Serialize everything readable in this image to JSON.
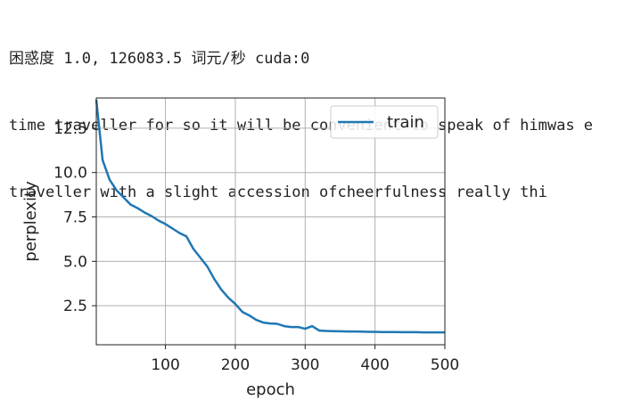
{
  "output": {
    "lines": [
      "困惑度 1.0, 126083.5 词元/秒 cuda:0",
      "time traveller for so it will be convenient to speak of himwas e",
      "traveller with a slight accession ofcheerfulness really thi"
    ]
  },
  "chart_data": {
    "type": "line",
    "title": "",
    "xlabel": "epoch",
    "ylabel": "perplexity",
    "xlim": [
      1,
      500
    ],
    "ylim": [
      0.3,
      14.2
    ],
    "xticks": [
      100,
      200,
      300,
      400,
      500
    ],
    "yticks": [
      2.5,
      5.0,
      7.5,
      10.0,
      12.5
    ],
    "xtick_labels": [
      "100",
      "200",
      "300",
      "400",
      "500"
    ],
    "ytick_labels": [
      "2.5",
      "5.0",
      "7.5",
      "10.0",
      "12.5"
    ],
    "grid": true,
    "legend": "top-right",
    "series": [
      {
        "name": "train",
        "color": "#1f77b4",
        "x": [
          1,
          10,
          20,
          30,
          40,
          50,
          60,
          70,
          80,
          90,
          100,
          110,
          120,
          130,
          140,
          150,
          160,
          170,
          180,
          190,
          200,
          210,
          220,
          230,
          240,
          250,
          260,
          270,
          280,
          290,
          300,
          310,
          320,
          330,
          340,
          350,
          360,
          370,
          380,
          390,
          400,
          410,
          420,
          430,
          440,
          450,
          460,
          470,
          480,
          490,
          500
        ],
        "y": [
          14.1,
          10.7,
          9.6,
          9.0,
          8.6,
          8.2,
          8.0,
          7.75,
          7.55,
          7.3,
          7.1,
          6.85,
          6.6,
          6.4,
          5.7,
          5.2,
          4.7,
          4.0,
          3.4,
          2.95,
          2.6,
          2.15,
          1.95,
          1.7,
          1.55,
          1.5,
          1.48,
          1.35,
          1.3,
          1.3,
          1.2,
          1.35,
          1.1,
          1.08,
          1.07,
          1.06,
          1.05,
          1.05,
          1.04,
          1.03,
          1.03,
          1.02,
          1.02,
          1.02,
          1.01,
          1.01,
          1.01,
          1.0,
          1.0,
          1.0,
          1.0
        ]
      }
    ]
  }
}
